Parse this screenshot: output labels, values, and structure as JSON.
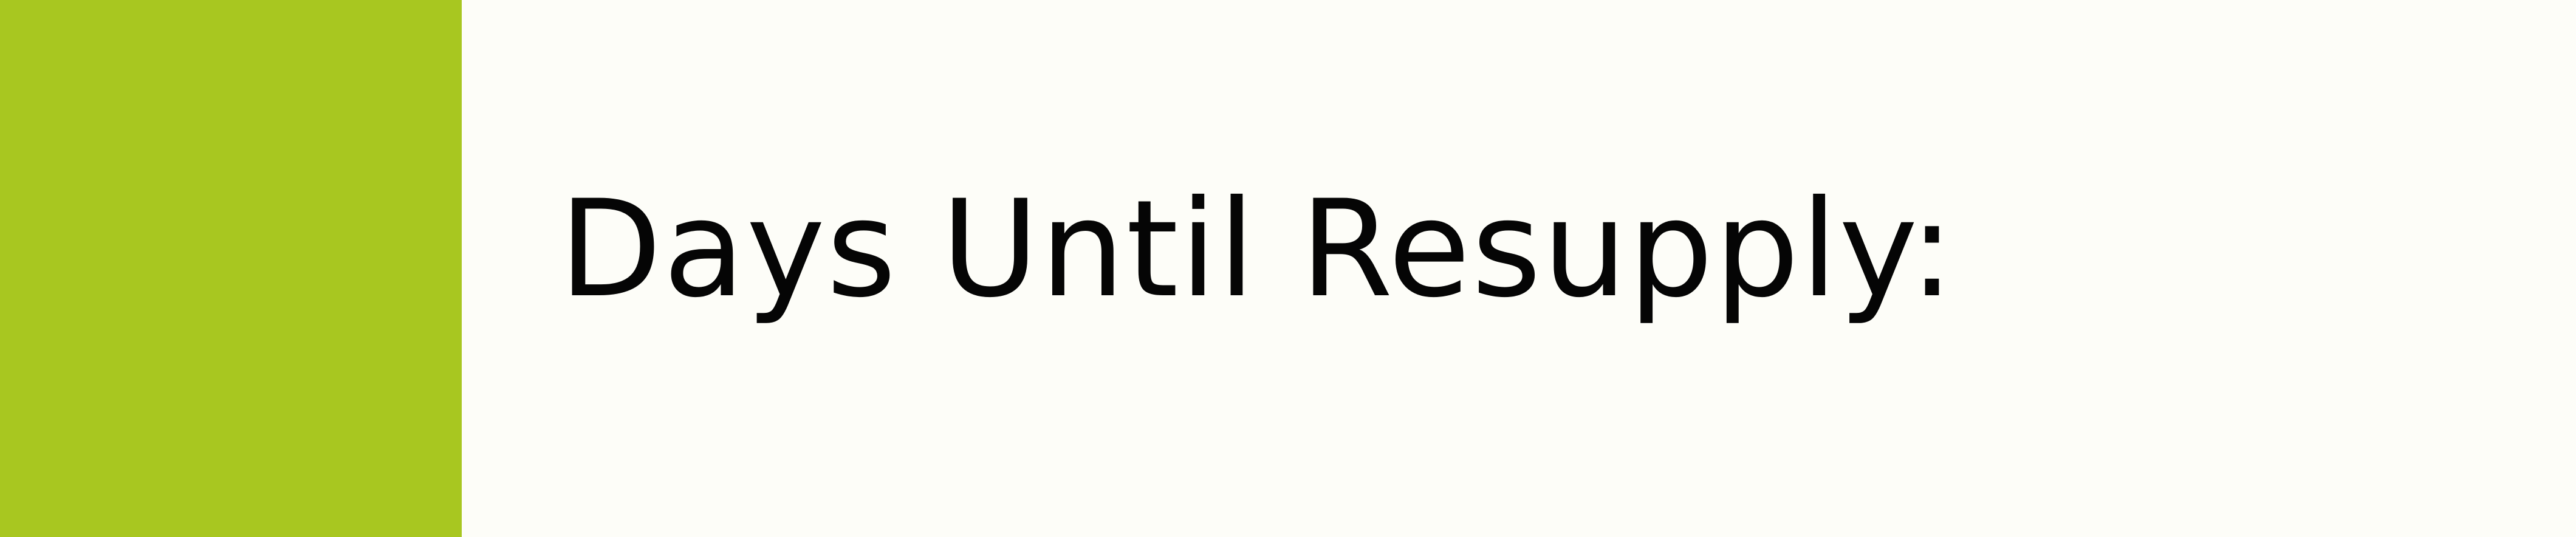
{
  "accent_color": "#a8c720",
  "background_color": "#fdfdf8",
  "heading": {
    "text": "Days Until Resupply:"
  }
}
